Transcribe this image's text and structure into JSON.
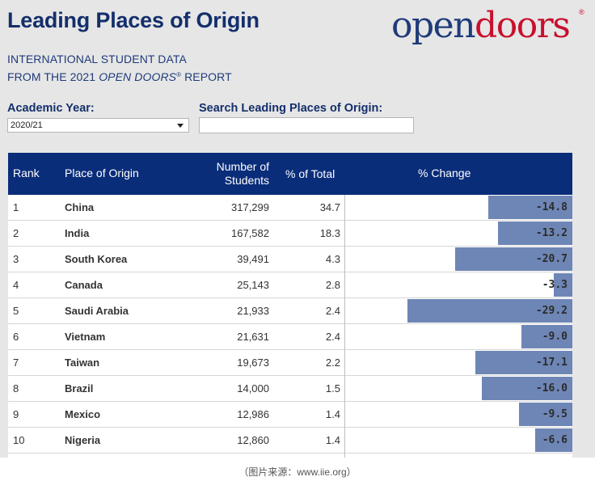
{
  "header": {
    "title": "Leading Places of Origin",
    "subtitle_line1": "INTERNATIONAL STUDENT DATA",
    "subtitle_line2_pre": "FROM THE 2021 ",
    "subtitle_line2_em": "OPEN DOORS",
    "subtitle_line2_reg": "®",
    "subtitle_line2_post": " REPORT",
    "logo_open": "open",
    "logo_doors": "doors",
    "logo_reg": "®"
  },
  "filters": {
    "year_label": "Academic Year:",
    "year_value": "2020/21",
    "search_label": "Search Leading Places of Origin:",
    "search_value": ""
  },
  "table": {
    "columns": [
      "Rank",
      "Place of Origin",
      "Number of\nStudents",
      "% of Total",
      "% Change"
    ],
    "bar_scale_max": 30,
    "rows": [
      {
        "rank": "1",
        "place": "China",
        "students": "317,299",
        "pct_total": "34.7",
        "pct_change": -14.8,
        "pct_change_label": "-14.8"
      },
      {
        "rank": "2",
        "place": "India",
        "students": "167,582",
        "pct_total": "18.3",
        "pct_change": -13.2,
        "pct_change_label": "-13.2"
      },
      {
        "rank": "3",
        "place": "South Korea",
        "students": "39,491",
        "pct_total": "4.3",
        "pct_change": -20.7,
        "pct_change_label": "-20.7"
      },
      {
        "rank": "4",
        "place": "Canada",
        "students": "25,143",
        "pct_total": "2.8",
        "pct_change": -3.3,
        "pct_change_label": "-3.3"
      },
      {
        "rank": "5",
        "place": "Saudi Arabia",
        "students": "21,933",
        "pct_total": "2.4",
        "pct_change": -29.2,
        "pct_change_label": "-29.2"
      },
      {
        "rank": "6",
        "place": "Vietnam",
        "students": "21,631",
        "pct_total": "2.4",
        "pct_change": -9.0,
        "pct_change_label": "-9.0"
      },
      {
        "rank": "7",
        "place": "Taiwan",
        "students": "19,673",
        "pct_total": "2.2",
        "pct_change": -17.1,
        "pct_change_label": "-17.1"
      },
      {
        "rank": "8",
        "place": "Brazil",
        "students": "14,000",
        "pct_total": "1.5",
        "pct_change": -16.0,
        "pct_change_label": "-16.0"
      },
      {
        "rank": "9",
        "place": "Mexico",
        "students": "12,986",
        "pct_total": "1.4",
        "pct_change": -9.5,
        "pct_change_label": "-9.5"
      },
      {
        "rank": "10",
        "place": "Nigeria",
        "students": "12,860",
        "pct_total": "1.4",
        "pct_change": -6.6,
        "pct_change_label": "-6.6"
      }
    ]
  },
  "caption": "（图片来源：www.iie.org）",
  "colors": {
    "header_bg": "#0a2d7a",
    "title": "#132f6b",
    "bar": "#6e86b5",
    "logo_red": "#c8102e",
    "logo_blue": "#1f3b7a"
  }
}
